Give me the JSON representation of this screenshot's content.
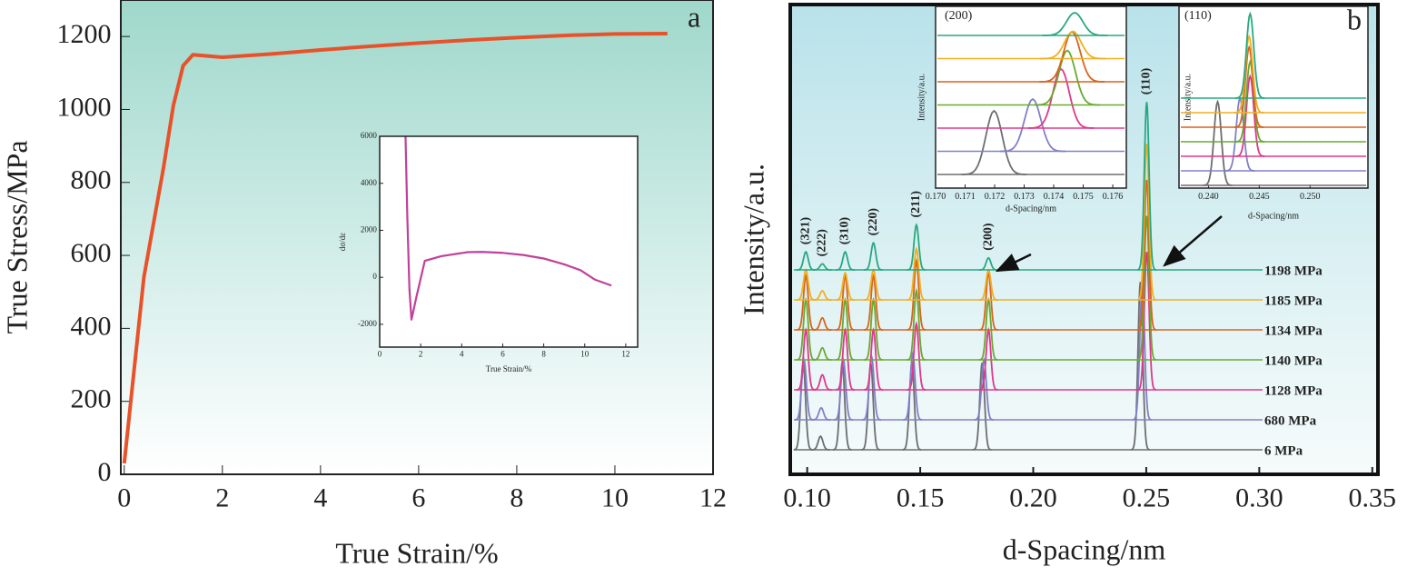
{
  "chart_data": [
    {
      "type": "line",
      "panel_label": "a",
      "xlabel": "True Strain/%",
      "ylabel": "True Stress/MPa",
      "color": "#e8522a",
      "x": [
        0,
        0.4,
        0.8,
        1.0,
        1.2,
        1.4,
        2,
        3,
        4,
        5,
        6,
        7,
        8,
        9,
        10,
        11.07
      ],
      "values": [
        30,
        540,
        840,
        1010,
        1120,
        1150,
        1143,
        1152,
        1163,
        1173,
        1182,
        1190,
        1197,
        1203,
        1207,
        1208
      ],
      "xlim": [
        -0.07,
        12
      ],
      "ylim": [
        0,
        1300
      ],
      "xticks": [
        0,
        2,
        4,
        6,
        8,
        10,
        12
      ],
      "yticks": [
        0,
        200,
        400,
        600,
        800,
        1000,
        1200
      ]
    },
    {
      "type": "line",
      "xlabel": "True Strain/%",
      "ylabel": "dσ/dε",
      "color": "#c0409a",
      "x": [
        1.26,
        1.35,
        1.45,
        1.55,
        1.8,
        2.2,
        3,
        4.3,
        5,
        6,
        7,
        8,
        9,
        9.8,
        10.5,
        11.3
      ],
      "values": [
        6000,
        2500,
        -500,
        -1800,
        -800,
        700,
        900,
        1070,
        1080,
        1040,
        950,
        800,
        550,
        300,
        -100,
        -350
      ],
      "xlim": [
        0,
        12.58
      ],
      "ylim": [
        -2970,
        6000
      ],
      "xticks": [
        0,
        2,
        4,
        6,
        8,
        10,
        12
      ],
      "yticks": [
        -2000,
        0,
        2000,
        4000,
        6000
      ]
    },
    {
      "type": "peaks",
      "panel_label": "b",
      "xlabel": "d-Spacing/nm",
      "ylabel": "Intensity/a.u.",
      "xlim": [
        0.0925,
        0.3525
      ],
      "xticks": [
        {
          "value": 0.1,
          "label": "0.10"
        },
        0.15,
        {
          "value": 0.2,
          "label": "0.20"
        },
        0.25,
        {
          "value": 0.3,
          "label": "0.30"
        },
        0.35
      ],
      "peak_labels": [
        "(321)",
        "(222)",
        "(310)",
        "(220)",
        "(211)",
        "(200)",
        "(110)"
      ],
      "series": [
        {
          "name": "6 MPa",
          "color": "#6e6e6e",
          "x": [
            0.0982,
            0.1059,
            0.1155,
            0.1281,
            0.1463,
            0.1774,
            0.2474
          ],
          "values": [
            2.9,
            0.45,
            2.9,
            2.9,
            2.9,
            2.9,
            5.6
          ]
        },
        {
          "name": "680 MPa",
          "color": "#8080c8",
          "x": [
            0.0986,
            0.1062,
            0.116,
            0.1285,
            0.1467,
            0.1782,
            0.2482
          ],
          "values": [
            2.0,
            0.4,
            2.0,
            2.1,
            2.2,
            2.0,
            4.5
          ]
        },
        {
          "name": "1128 MPa",
          "color": "#e0388c",
          "x": [
            0.0994,
            0.1067,
            0.1168,
            0.1293,
            0.1483,
            0.1802,
            0.2502
          ],
          "values": [
            2.0,
            0.5,
            2.0,
            2.0,
            2.2,
            2.0,
            4.6
          ]
        },
        {
          "name": "1140 MPa",
          "color": "#6aaa30",
          "x": [
            0.0994,
            0.1067,
            0.1168,
            0.1293,
            0.1483,
            0.1802,
            0.2502
          ],
          "values": [
            2.0,
            0.4,
            2.0,
            2.0,
            2.3,
            2.0,
            4.8
          ]
        },
        {
          "name": "1134 MPa",
          "color": "#d8641e",
          "x": [
            0.0994,
            0.1067,
            0.1168,
            0.1293,
            0.1483,
            0.1802,
            0.2502
          ],
          "values": [
            1.8,
            0.4,
            1.8,
            1.8,
            2.3,
            1.9,
            5.0
          ]
        },
        {
          "name": "1185 MPa",
          "color": "#f0b020",
          "x": [
            0.0994,
            0.1067,
            0.1168,
            0.1293,
            0.1483,
            0.1802,
            0.2502
          ],
          "values": [
            1.0,
            0.3,
            0.9,
            1.0,
            1.7,
            1.0,
            5.2
          ]
        },
        {
          "name": "1198 MPa",
          "color": "#28a880",
          "x": [
            0.0994,
            0.1067,
            0.1168,
            0.1293,
            0.1483,
            0.1802,
            0.2502
          ],
          "values": [
            0.6,
            0.2,
            0.6,
            0.9,
            1.5,
            0.4,
            5.6
          ]
        }
      ]
    },
    {
      "type": "peaks",
      "title": "(200)",
      "xlabel": "d-Spacing/nm",
      "ylabel": "Intensity/a.u.",
      "xlim": [
        0.17,
        0.17646
      ],
      "xticks": [
        {
          "value": 0.17,
          "label": "0.170"
        },
        0.171,
        0.172,
        0.173,
        0.174,
        0.175,
        0.176
      ],
      "series": [
        {
          "color": "#6e6e6e",
          "x": [
            0.17198
          ],
          "values": [
            2.8
          ]
        },
        {
          "color": "#8080c8",
          "x": [
            0.17329
          ],
          "values": [
            2.3
          ]
        },
        {
          "color": "#e0388c",
          "x": [
            0.17425
          ],
          "values": [
            2.6
          ]
        },
        {
          "color": "#6aaa30",
          "x": [
            0.17446
          ],
          "values": [
            2.4
          ]
        },
        {
          "color": "#d8641e",
          "x": [
            0.17462
          ],
          "values": [
            2.2
          ]
        },
        {
          "color": "#f0b020",
          "x": [
            0.17465
          ],
          "values": [
            1.2
          ]
        },
        {
          "color": "#28a880",
          "x": [
            0.17471
          ],
          "values": [
            1.0
          ]
        }
      ]
    },
    {
      "type": "peaks",
      "title": "(110)",
      "xlabel": "d-Spacing/nm",
      "ylabel": "Intensity/a.u.",
      "xlim": [
        0.2371,
        0.2557
      ],
      "xticks": [
        {
          "value": 0.24,
          "label": "0.240"
        },
        0.245,
        {
          "value": 0.25,
          "label": "0.250"
        }
      ],
      "series": [
        {
          "color": "#6e6e6e",
          "x": [
            0.2409
          ],
          "values": [
            5.75
          ]
        },
        {
          "color": "#8080c8",
          "x": [
            0.2431
          ],
          "values": [
            5.0
          ]
        },
        {
          "color": "#e0388c",
          "x": [
            0.2441
          ],
          "values": [
            5.5
          ]
        },
        {
          "color": "#6aaa30",
          "x": [
            0.2441
          ],
          "values": [
            5.5
          ]
        },
        {
          "color": "#d8641e",
          "x": [
            0.244
          ],
          "values": [
            5.5
          ]
        },
        {
          "color": "#f0b020",
          "x": [
            0.244
          ],
          "values": [
            5.25
          ]
        },
        {
          "color": "#28a880",
          "x": [
            0.2441
          ],
          "values": [
            5.8
          ]
        }
      ]
    }
  ]
}
